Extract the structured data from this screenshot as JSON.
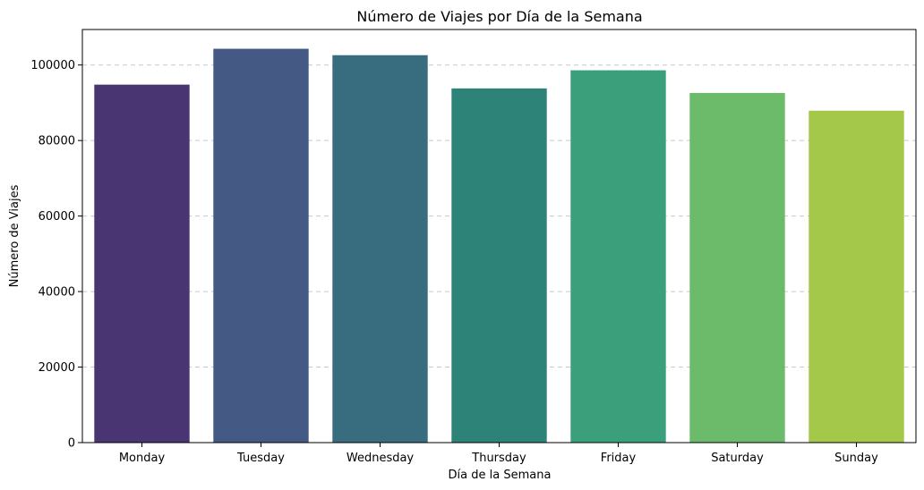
{
  "chart_data": {
    "type": "bar",
    "title": "Número de Viajes por Día de la Semana",
    "xlabel": "Día de la Semana",
    "ylabel": "Número de Viajes",
    "categories": [
      "Monday",
      "Tuesday",
      "Wednesday",
      "Thursday",
      "Friday",
      "Saturday",
      "Sunday"
    ],
    "values": [
      94800,
      104300,
      102600,
      93800,
      98600,
      92600,
      87900
    ],
    "colors": [
      "#4a3573",
      "#445a85",
      "#386d7f",
      "#2e8379",
      "#3b9f7b",
      "#6bbb6b",
      "#a3c84a"
    ],
    "ylim": [
      0,
      109400
    ],
    "yticks": [
      0,
      20000,
      40000,
      60000,
      80000,
      100000
    ],
    "grid": {
      "y": true,
      "x": false,
      "style": "dashed"
    },
    "legend": "none"
  }
}
